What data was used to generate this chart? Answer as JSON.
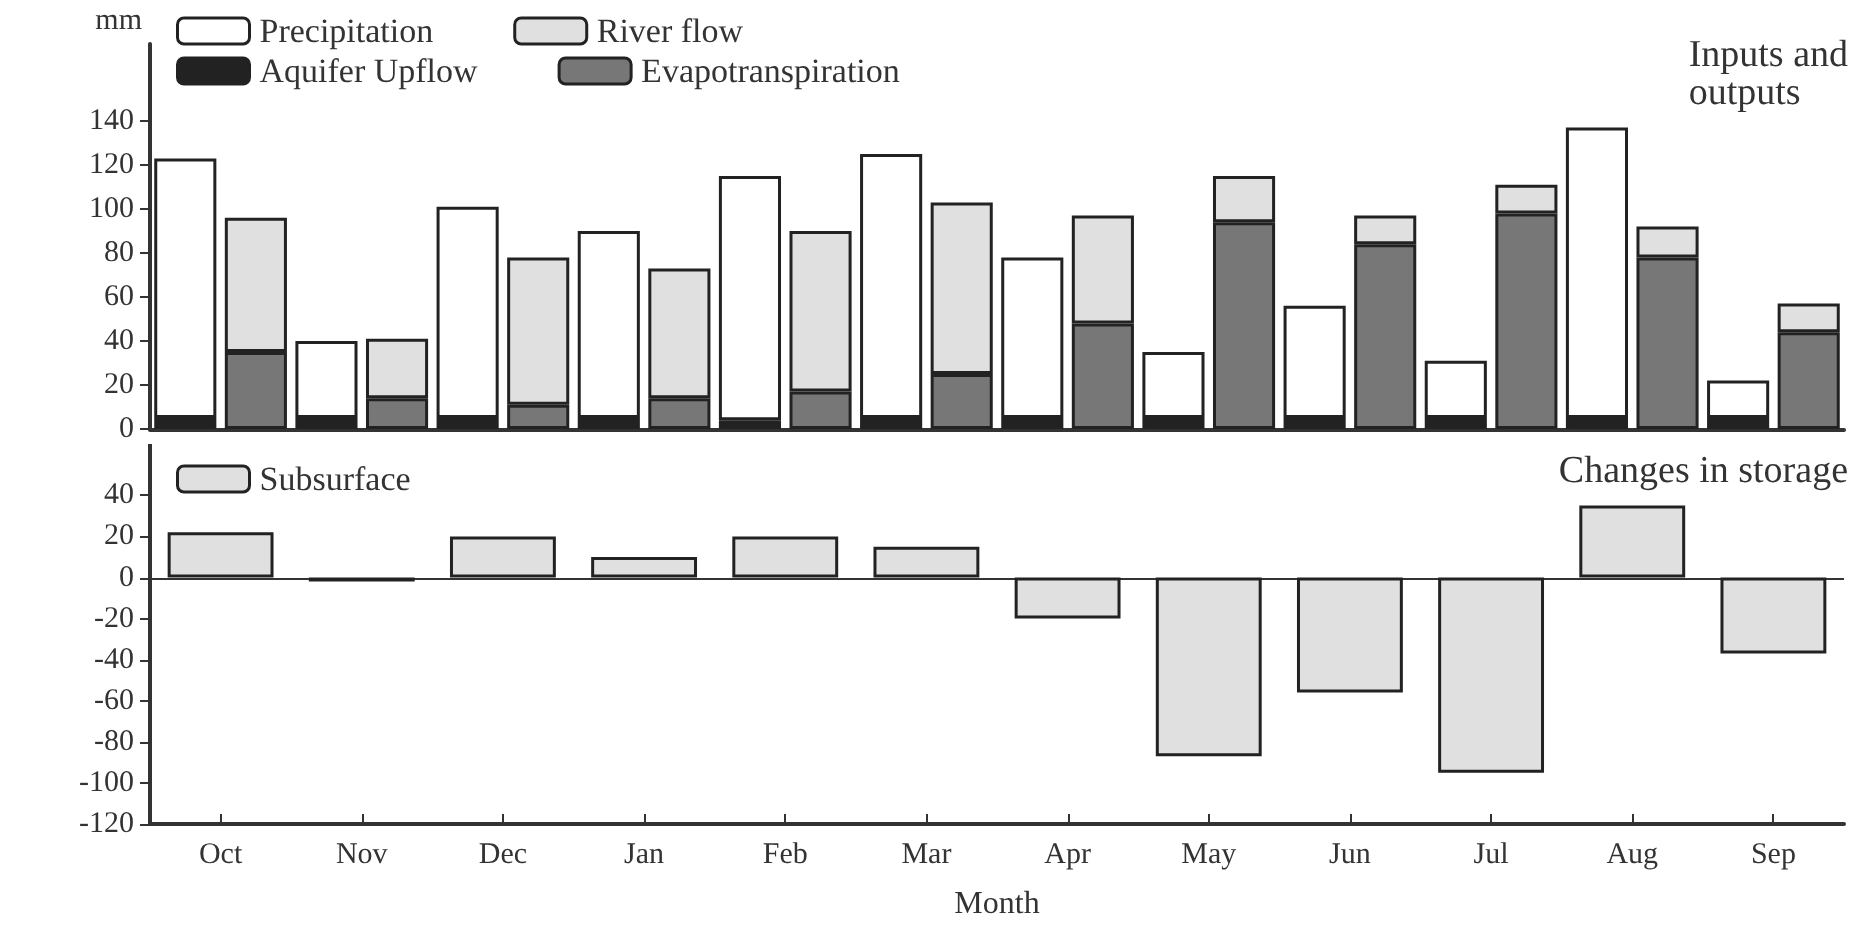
{
  "chart_data": [
    {
      "type": "bar",
      "stacked": true,
      "ylabel": "mm",
      "categories": [
        null,
        null,
        null,
        null,
        null,
        null,
        null,
        null,
        null,
        null,
        null,
        null,
        null,
        null,
        null,
        null,
        null,
        null,
        null,
        null,
        null,
        null,
        null,
        null
      ],
      "tick_labels": "y",
      "ylim": [
        0,
        175
      ],
      "yticks": [
        0,
        20,
        40,
        60,
        80,
        100,
        120,
        140
      ],
      "grid": false,
      "legend": "top left",
      "annotations": [
        "Inputs and\noutputs"
      ],
      "series": [
        {
          "name": "Aquifer Upflow",
          "color": "#222222",
          "values": [
            5,
            null,
            5,
            null,
            5,
            null,
            5,
            null,
            4,
            null,
            5,
            null,
            5,
            null,
            5,
            null,
            5,
            null,
            5,
            null,
            5,
            null,
            5,
            null
          ]
        },
        {
          "name": "Precipitation",
          "color": "#ffffff",
          "values": [
            118,
            null,
            35,
            null,
            96,
            null,
            85,
            null,
            111,
            null,
            120,
            null,
            73,
            null,
            30,
            null,
            51,
            null,
            26,
            null,
            132,
            null,
            17,
            null
          ]
        },
        {
          "name": "Evapotranspiration",
          "color": "#777777",
          "values": [
            null,
            35,
            null,
            14,
            null,
            11,
            null,
            14,
            null,
            17,
            null,
            25,
            null,
            48,
            null,
            94,
            null,
            84,
            null,
            98,
            null,
            78,
            null,
            44
          ]
        },
        {
          "name": "River flow",
          "color": "#e0e0e0",
          "values": [
            null,
            61,
            null,
            27,
            null,
            67,
            null,
            59,
            null,
            73,
            null,
            78,
            null,
            49,
            null,
            21,
            null,
            13,
            null,
            13,
            null,
            14,
            null,
            13
          ]
        }
      ]
    },
    {
      "type": "bar",
      "xlabel": "Month",
      "categories": [
        "Oct",
        "Nov",
        "Dec",
        "Jan",
        "Feb",
        "Mar",
        "Apr",
        "May",
        "Jun",
        "Jul",
        "Aug",
        "Sep"
      ],
      "ylim": [
        -120,
        65
      ],
      "yticks": [
        -120,
        -100,
        -80,
        -60,
        -40,
        -20,
        0,
        20,
        40
      ],
      "grid": false,
      "legend": "top left",
      "annotations": [
        "Changes in storage"
      ],
      "ref_lines": [
        {
          "axis": "y",
          "value": 0,
          "color": "#333333"
        }
      ],
      "series": [
        {
          "name": "Subsurface",
          "color": "#e0e0e0",
          "values": [
            22,
            -2,
            20,
            10,
            20,
            15,
            -20,
            -87,
            -56,
            -95,
            35,
            -37
          ]
        }
      ]
    }
  ]
}
